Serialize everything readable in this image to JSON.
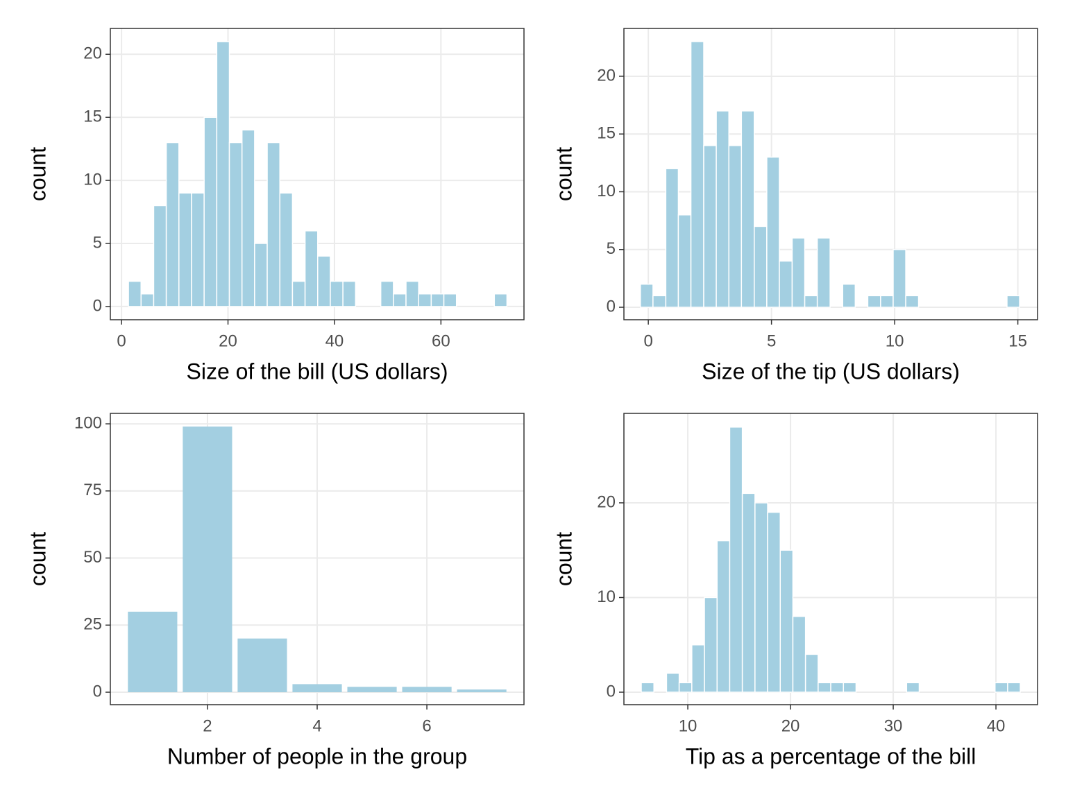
{
  "chart_data": [
    {
      "type": "histogram",
      "x_label": "Size of the bill (US dollars)",
      "y_label": "count",
      "color": "#a3cfe1",
      "grid": true,
      "bins": [
        1.3,
        3.67,
        6.04,
        8.41,
        10.78,
        13.15,
        15.52,
        17.89,
        20.26,
        22.63,
        25.0,
        27.37,
        29.74,
        32.11,
        34.48,
        36.85,
        39.22,
        41.59,
        43.96,
        46.33,
        48.7,
        51.07,
        53.44,
        55.81,
        58.18,
        60.55,
        62.92,
        65.29,
        67.66,
        70.03,
        72.4
      ],
      "values": [
        2,
        1,
        8,
        13,
        9,
        9,
        15,
        21,
        13,
        14,
        5,
        13,
        9,
        2,
        6,
        4,
        2,
        2,
        0,
        0,
        2,
        1,
        2,
        1,
        1,
        1,
        0,
        0,
        0,
        1
      ],
      "xlim": [
        -2.1,
        75.6
      ],
      "xticks": [
        0,
        20,
        40,
        60
      ],
      "ylim": [
        -1.05,
        22.05
      ],
      "yticks": [
        0,
        5,
        10,
        15,
        20
      ]
    },
    {
      "type": "histogram",
      "x_label": "Size of the tip (US dollars)",
      "y_label": "count",
      "color": "#a3cfe1",
      "grid": true,
      "bins": [
        -0.32,
        0.19,
        0.71,
        1.22,
        1.73,
        2.25,
        2.76,
        3.27,
        3.78,
        4.3,
        4.81,
        5.32,
        5.84,
        6.35,
        6.86,
        7.38,
        7.89,
        8.4,
        8.91,
        9.43,
        9.94,
        10.45,
        10.97,
        11.48,
        11.99,
        12.51,
        13.02,
        13.53,
        14.04,
        14.56,
        15.07
      ],
      "values": [
        2,
        1,
        12,
        8,
        23,
        14,
        17,
        14,
        17,
        7,
        13,
        4,
        6,
        1,
        6,
        0,
        2,
        0,
        1,
        1,
        5,
        1,
        0,
        0,
        0,
        0,
        0,
        0,
        0,
        1
      ],
      "xlim": [
        -0.99,
        15.8
      ],
      "xticks": [
        0,
        5,
        10,
        15
      ],
      "ylim": [
        -1.08,
        24.14
      ],
      "yticks": [
        0,
        5,
        10,
        15,
        20
      ]
    },
    {
      "type": "bar",
      "x_label": "Number of people in the group",
      "y_label": "count",
      "color": "#a3cfe1",
      "grid": true,
      "x": [
        1,
        2,
        3,
        4,
        5,
        6,
        7
      ],
      "values": [
        30,
        99,
        20,
        3,
        2,
        2,
        1
      ],
      "xlim": [
        0.23,
        7.77
      ],
      "xticks": [
        2,
        4,
        6
      ],
      "ylim": [
        -4.65,
        103.9
      ],
      "yticks": [
        0,
        25,
        50,
        75,
        100
      ]
    },
    {
      "type": "histogram",
      "x_label": "Tip as a percentage of the bill",
      "y_label": "count",
      "color": "#a3cfe1",
      "grid": true,
      "bins": [
        5.47,
        6.7,
        7.93,
        9.16,
        10.39,
        11.62,
        12.85,
        14.08,
        15.31,
        16.54,
        17.77,
        19.0,
        20.23,
        21.46,
        22.69,
        23.92,
        25.15,
        26.38,
        27.61,
        28.84,
        30.07,
        31.3,
        32.53,
        33.76,
        34.99,
        36.22,
        37.45,
        38.68,
        39.91,
        41.14,
        42.37
      ],
      "values": [
        1,
        0,
        2,
        1,
        5,
        10,
        16,
        28,
        21,
        20,
        19,
        15,
        8,
        4,
        1,
        1,
        1,
        0,
        0,
        0,
        0,
        1,
        0,
        0,
        0,
        0,
        0,
        0,
        1,
        1
      ],
      "xlim": [
        3.78,
        44.05
      ],
      "xticks": [
        10,
        20,
        30,
        40
      ],
      "ylim": [
        -1.32,
        29.45
      ],
      "yticks": [
        0,
        10,
        20
      ]
    }
  ]
}
